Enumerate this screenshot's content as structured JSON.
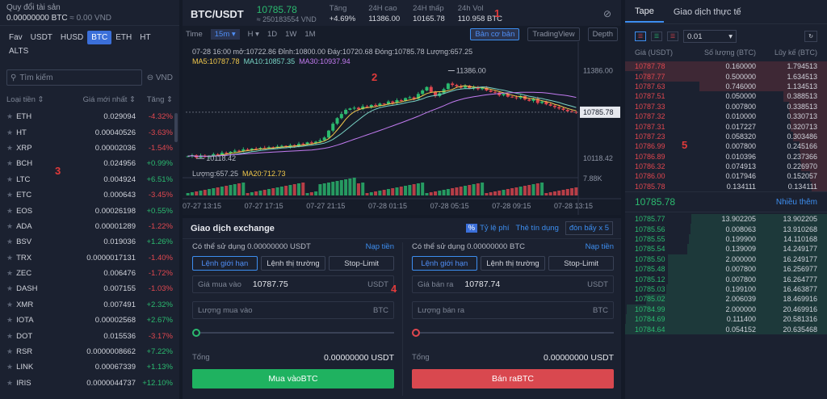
{
  "markers": [
    "1",
    "2",
    "3",
    "4",
    "5"
  ],
  "left": {
    "portfolio_label": "Quy đổi tài sản",
    "portfolio_value": "0.00000000 BTC",
    "portfolio_vnd": "≈ 0.00 VND",
    "tabs": [
      "Fav",
      "USDT",
      "HUSD",
      "BTC",
      "ETH",
      "HT",
      "ALTS"
    ],
    "active_tab": "BTC",
    "search_placeholder": "Tìm kiếm",
    "currency": "VND",
    "col_coin": "Loại tiền",
    "col_price": "Giá mới nhất",
    "col_change": "Tăng",
    "coins": [
      {
        "name": "ETH",
        "price": "0.029094",
        "change": "-4.32%"
      },
      {
        "name": "HT",
        "price": "0.00040526",
        "change": "-3.63%"
      },
      {
        "name": "XRP",
        "price": "0.00002036",
        "change": "-1.54%"
      },
      {
        "name": "BCH",
        "price": "0.024956",
        "change": "+0.99%"
      },
      {
        "name": "LTC",
        "price": "0.004924",
        "change": "+6.51%"
      },
      {
        "name": "ETC",
        "price": "0.000643",
        "change": "-3.45%"
      },
      {
        "name": "EOS",
        "price": "0.00026198",
        "change": "+0.55%"
      },
      {
        "name": "ADA",
        "price": "0.00001289",
        "change": "-1.22%"
      },
      {
        "name": "BSV",
        "price": "0.019036",
        "change": "+1.26%"
      },
      {
        "name": "TRX",
        "price": "0.0000017131",
        "change": "-1.40%"
      },
      {
        "name": "ZEC",
        "price": "0.006476",
        "change": "-1.72%"
      },
      {
        "name": "DASH",
        "price": "0.007155",
        "change": "-1.03%"
      },
      {
        "name": "XMR",
        "price": "0.007491",
        "change": "+2.32%"
      },
      {
        "name": "IOTA",
        "price": "0.00002568",
        "change": "+2.67%"
      },
      {
        "name": "DOT",
        "price": "0.015536",
        "change": "-3.17%"
      },
      {
        "name": "RSR",
        "price": "0.0000008662",
        "change": "+7.22%"
      },
      {
        "name": "LINK",
        "price": "0.00067339",
        "change": "+1.13%"
      },
      {
        "name": "IRIS",
        "price": "0.0000044737",
        "change": "+12.10%"
      }
    ]
  },
  "header": {
    "pair": "BTC/USDT",
    "price": "10785.78",
    "price_vnd": "≈ 250183554 VND",
    "change_label": "Tăng",
    "change_value": "+4.69%",
    "high_label": "24H cao",
    "high_value": "11386.00",
    "low_label": "24H thấp",
    "low_value": "10165.78",
    "vol_label": "24h Vol",
    "vol_value": "110.958 BTC"
  },
  "chart": {
    "time_label": "Time",
    "interval": "15m",
    "intervals": [
      "H",
      "1D",
      "1W",
      "1M"
    ],
    "views": [
      "Bản cơ bản",
      "TradingView",
      "Depth"
    ],
    "active_view": "Bản cơ bản",
    "ohlc_line": "07-28 16:00   mở:10722.86   Đỉnh:10800.00   Đáy:10720.68   Đóng:10785.78   Lượng:657.25",
    "ma5": "MA5:10787.78",
    "ma10": "MA10:10857.35",
    "ma30": "MA30:10937.94",
    "vol_line": "Lượng:657.25",
    "ma20": "MA20:712.73",
    "y_labels": [
      "11386.00",
      "10118.42"
    ],
    "last_price_tag": "10785.78",
    "vol_axis": "7.88K",
    "high_annot": "11386.00",
    "low_annot": "10118.42",
    "x_labels": [
      "07-27 13:15",
      "07-27 17:15",
      "07-27 21:15",
      "07-28 01:15",
      "07-28 05:15",
      "07-28 09:15",
      "07-28 13:15"
    ]
  },
  "chart_data": {
    "type": "candlestick",
    "ylim": [
      10050,
      11450
    ],
    "x_ticks": [
      "07-27 13:15",
      "07-27 17:15",
      "07-27 21:15",
      "07-28 01:15",
      "07-28 05:15",
      "07-28 09:15",
      "07-28 13:15"
    ],
    "y_ticks": [
      "11386.00",
      "10118.42"
    ],
    "high": 11386.0,
    "low": 10118.42,
    "last": 10785.78,
    "close_path": [
      10150,
      10165,
      10130,
      10160,
      10140,
      10155,
      10180,
      10170,
      10200,
      10190,
      10215,
      10230,
      10220,
      10250,
      10240,
      10260,
      10255,
      10270,
      10265,
      10280,
      10275,
      10290,
      10300,
      10285,
      10310,
      10295,
      10330,
      10320,
      10350,
      10340,
      10360,
      10380,
      10420,
      10520,
      10620,
      10700,
      10760,
      10820,
      10840,
      10850,
      10830,
      10870,
      10860,
      10890,
      10880,
      10910,
      10900,
      10940,
      10920,
      10960,
      10950,
      10990,
      11000,
      10980,
      11050,
      11100,
      11150,
      11080,
      11020,
      11060,
      11120,
      11200,
      11180,
      11160,
      11140,
      11170,
      11130,
      11150,
      11120,
      11140,
      11100,
      11080,
      11070,
      11030,
      11050,
      11010,
      11000,
      10990,
      11020,
      10970,
      10950,
      10980,
      10920,
      10940,
      10900,
      10880,
      10860,
      10840,
      10820,
      10800,
      10790,
      10785.78
    ]
  },
  "exchange": {
    "title": "Giao dịch exchange",
    "fee_badge": "%",
    "fee_label": "Tỷ lệ phí",
    "credit_label": "Thẻ tín dụng",
    "leverage": "đòn bẩy x 5",
    "buy": {
      "available": "Có thể sử dụng  0.00000000 USDT",
      "deposit": "Nạp tiền",
      "types": [
        "Lệnh giới hạn",
        "Lệnh thị trường",
        "Stop-Limit"
      ],
      "price_label": "Giá mua vào",
      "price_value": "10787.75",
      "price_unit": "USDT",
      "amount_label": "Lượng mua vào",
      "amount_unit": "BTC",
      "total_label": "Tổng",
      "total_value": "0.00000000 USDT",
      "button": "Mua vàoBTC"
    },
    "sell": {
      "available": "Có thể sử dụng  0.00000000 BTC",
      "deposit": "Nạp tiền",
      "types": [
        "Lệnh giới hạn",
        "Lệnh thị trường",
        "Stop-Limit"
      ],
      "price_label": "Giá bán ra",
      "price_value": "10787.74",
      "price_unit": "USDT",
      "amount_label": "Lượng bán ra",
      "amount_unit": "BTC",
      "total_label": "Tổng",
      "total_value": "0.00000000 USDT",
      "button": "Bán raBTC"
    }
  },
  "orderbook": {
    "tabs": [
      "Tape",
      "Giao dịch thực tế"
    ],
    "active_tab": "Tape",
    "precision": "0.01",
    "col_price": "Giá (USDT)",
    "col_amount": "Số lượng (BTC)",
    "col_total": "Lũy kế (BTC)",
    "asks": [
      {
        "p": "10787.78",
        "a": "0.160000",
        "t": "1.794513"
      },
      {
        "p": "10787.77",
        "a": "0.500000",
        "t": "1.634513"
      },
      {
        "p": "10787.63",
        "a": "0.746000",
        "t": "1.134513"
      },
      {
        "p": "10787.51",
        "a": "0.050000",
        "t": "0.388513"
      },
      {
        "p": "10787.33",
        "a": "0.007800",
        "t": "0.338513"
      },
      {
        "p": "10787.32",
        "a": "0.010000",
        "t": "0.330713"
      },
      {
        "p": "10787.31",
        "a": "0.017227",
        "t": "0.320713"
      },
      {
        "p": "10787.23",
        "a": "0.058320",
        "t": "0.303486"
      },
      {
        "p": "10786.99",
        "a": "0.007800",
        "t": "0.245166"
      },
      {
        "p": "10786.89",
        "a": "0.010396",
        "t": "0.237366"
      },
      {
        "p": "10786.32",
        "a": "0.074913",
        "t": "0.226970"
      },
      {
        "p": "10786.00",
        "a": "0.017946",
        "t": "0.152057"
      },
      {
        "p": "10785.78",
        "a": "0.134111",
        "t": "0.134111"
      }
    ],
    "last_price": "10785.78",
    "more": "Nhiều thêm",
    "bids": [
      {
        "p": "10785.77",
        "a": "13.902205",
        "t": "13.902205"
      },
      {
        "p": "10785.56",
        "a": "0.008063",
        "t": "13.910268"
      },
      {
        "p": "10785.55",
        "a": "0.199900",
        "t": "14.110168"
      },
      {
        "p": "10785.54",
        "a": "0.139009",
        "t": "14.249177"
      },
      {
        "p": "10785.50",
        "a": "2.000000",
        "t": "16.249177"
      },
      {
        "p": "10785.48",
        "a": "0.007800",
        "t": "16.256977"
      },
      {
        "p": "10785.12",
        "a": "0.007800",
        "t": "16.264777"
      },
      {
        "p": "10785.03",
        "a": "0.199100",
        "t": "16.463877"
      },
      {
        "p": "10785.02",
        "a": "2.006039",
        "t": "18.469916"
      },
      {
        "p": "10784.99",
        "a": "2.000000",
        "t": "20.469916"
      },
      {
        "p": "10784.69",
        "a": "0.111400",
        "t": "20.581316"
      },
      {
        "p": "10784.64",
        "a": "0.054152",
        "t": "20.635468"
      }
    ]
  },
  "colors": {
    "up": "#2bba6f",
    "down": "#e0474f",
    "accent": "#3d8ef0"
  }
}
